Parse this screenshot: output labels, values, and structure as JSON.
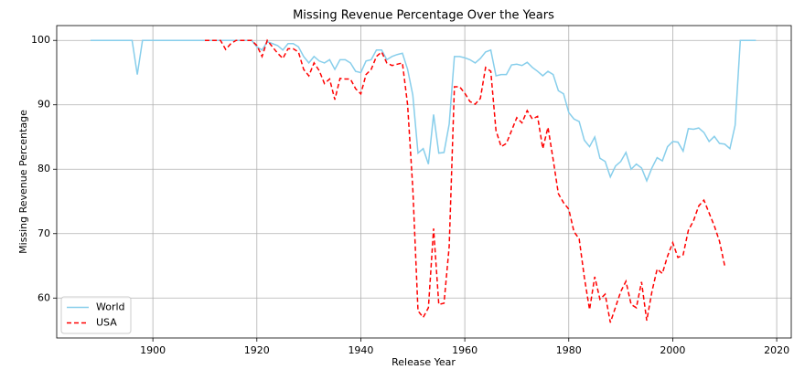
{
  "chart_data": {
    "type": "line",
    "title": "Missing Revenue Percentage Over the Years",
    "x_label": "Release Year",
    "y_label": "Missing Revenue Percentage",
    "x": [
      1888,
      1889,
      1890,
      1891,
      1892,
      1893,
      1894,
      1895,
      1896,
      1897,
      1898,
      1899,
      1900,
      1901,
      1902,
      1903,
      1904,
      1905,
      1906,
      1907,
      1908,
      1909,
      1910,
      1911,
      1912,
      1913,
      1914,
      1915,
      1916,
      1917,
      1918,
      1919,
      1920,
      1921,
      1922,
      1923,
      1924,
      1925,
      1926,
      1927,
      1928,
      1929,
      1930,
      1931,
      1932,
      1933,
      1934,
      1935,
      1936,
      1937,
      1938,
      1939,
      1940,
      1941,
      1942,
      1943,
      1944,
      1945,
      1946,
      1947,
      1948,
      1949,
      1950,
      1951,
      1952,
      1953,
      1954,
      1955,
      1956,
      1957,
      1958,
      1959,
      1960,
      1961,
      1962,
      1963,
      1964,
      1965,
      1966,
      1967,
      1968,
      1969,
      1970,
      1971,
      1972,
      1973,
      1974,
      1975,
      1976,
      1977,
      1978,
      1979,
      1980,
      1981,
      1982,
      1983,
      1984,
      1985,
      1986,
      1987,
      1988,
      1989,
      1990,
      1991,
      1992,
      1993,
      1994,
      1995,
      1996,
      1997,
      1998,
      1999,
      2000,
      2001,
      2002,
      2003,
      2004,
      2005,
      2006,
      2007,
      2008,
      2009,
      2010,
      2011,
      2012,
      2013,
      2014,
      2015,
      2016
    ],
    "series": [
      {
        "name": "World",
        "color": "#87ceeb",
        "linestyle": "solid",
        "values": [
          100,
          100,
          100,
          100,
          100,
          100,
          100,
          100,
          100,
          94.7,
          100,
          100,
          100,
          100,
          100,
          100,
          100,
          100,
          100,
          100,
          100,
          100,
          100,
          100,
          100,
          100,
          100,
          100,
          100,
          100,
          100,
          100,
          99,
          98.5,
          99.8,
          99.5,
          99.2,
          98.5,
          99.5,
          99.5,
          99,
          97.5,
          96.5,
          97.5,
          96.8,
          96.5,
          97,
          95.5,
          97,
          97,
          96.5,
          95.2,
          95,
          96.8,
          97,
          98.5,
          98.5,
          97,
          97.5,
          97.8,
          98,
          95.5,
          91.5,
          82.5,
          83.2,
          80.8,
          88.5,
          82.5,
          82.6,
          87,
          97.5,
          97.5,
          97.3,
          97,
          96.5,
          97.2,
          98.2,
          98.5,
          94.5,
          94.7,
          94.7,
          96.2,
          96.3,
          96.1,
          96.6,
          95.8,
          95.2,
          94.5,
          95.2,
          94.7,
          92.2,
          91.7,
          88.8,
          87.8,
          87.4,
          84.5,
          83.5,
          85,
          81.7,
          81.2,
          78.8,
          80.5,
          81.2,
          82.6,
          80,
          80.8,
          80.2,
          78.2,
          80.2,
          81.8,
          81.3,
          83.5,
          84.3,
          84.2,
          82.8,
          86.3,
          86.2,
          86.4,
          85.7,
          84.3,
          85.1,
          84,
          83.9,
          83.2,
          86.8,
          100,
          100,
          100,
          100
        ]
      },
      {
        "name": "USA",
        "color": "#ff0000",
        "linestyle": "dashed",
        "values": [
          null,
          null,
          null,
          null,
          null,
          null,
          null,
          null,
          null,
          null,
          null,
          null,
          null,
          null,
          null,
          null,
          null,
          null,
          null,
          null,
          null,
          null,
          100,
          100,
          100,
          100,
          98.6,
          99.5,
          100,
          100,
          100,
          100,
          99.2,
          97.5,
          100,
          99,
          98,
          97.2,
          98.7,
          98.7,
          98.2,
          95.5,
          94.5,
          96.5,
          95.3,
          93.3,
          94,
          90.8,
          94.1,
          94,
          94,
          92.5,
          91.7,
          94.7,
          95.5,
          97.5,
          98.2,
          96.5,
          96.1,
          96.3,
          96.5,
          90,
          77,
          58,
          57,
          58.5,
          70.8,
          59,
          59.2,
          68,
          92.8,
          92.8,
          91.8,
          90.5,
          90.1,
          91,
          95.8,
          95.2,
          86,
          83.5,
          84,
          86,
          88,
          87.2,
          89.1,
          87.8,
          88.2,
          83.2,
          86.5,
          81.5,
          76.2,
          74.8,
          73.8,
          70.3,
          69.2,
          63.2,
          58.2,
          63.3,
          59.8,
          60.6,
          56.2,
          58.6,
          61,
          62.6,
          59,
          58.5,
          62.5,
          56.5,
          61,
          64.5,
          63.8,
          66.5,
          68.6,
          66.3,
          66.7,
          70.5,
          72,
          74.3,
          75.2,
          73.2,
          71.2,
          68.8,
          65,
          null,
          null,
          null,
          null,
          null,
          null
        ]
      }
    ],
    "xlim": [
      1881.5,
      2022.8
    ],
    "ylim": [
      53.8,
      102.3
    ],
    "xticks": [
      1900,
      1920,
      1940,
      1960,
      1980,
      2000,
      2020
    ],
    "yticks": [
      60,
      70,
      80,
      90,
      100
    ],
    "grid": true,
    "legend": "lower left"
  }
}
